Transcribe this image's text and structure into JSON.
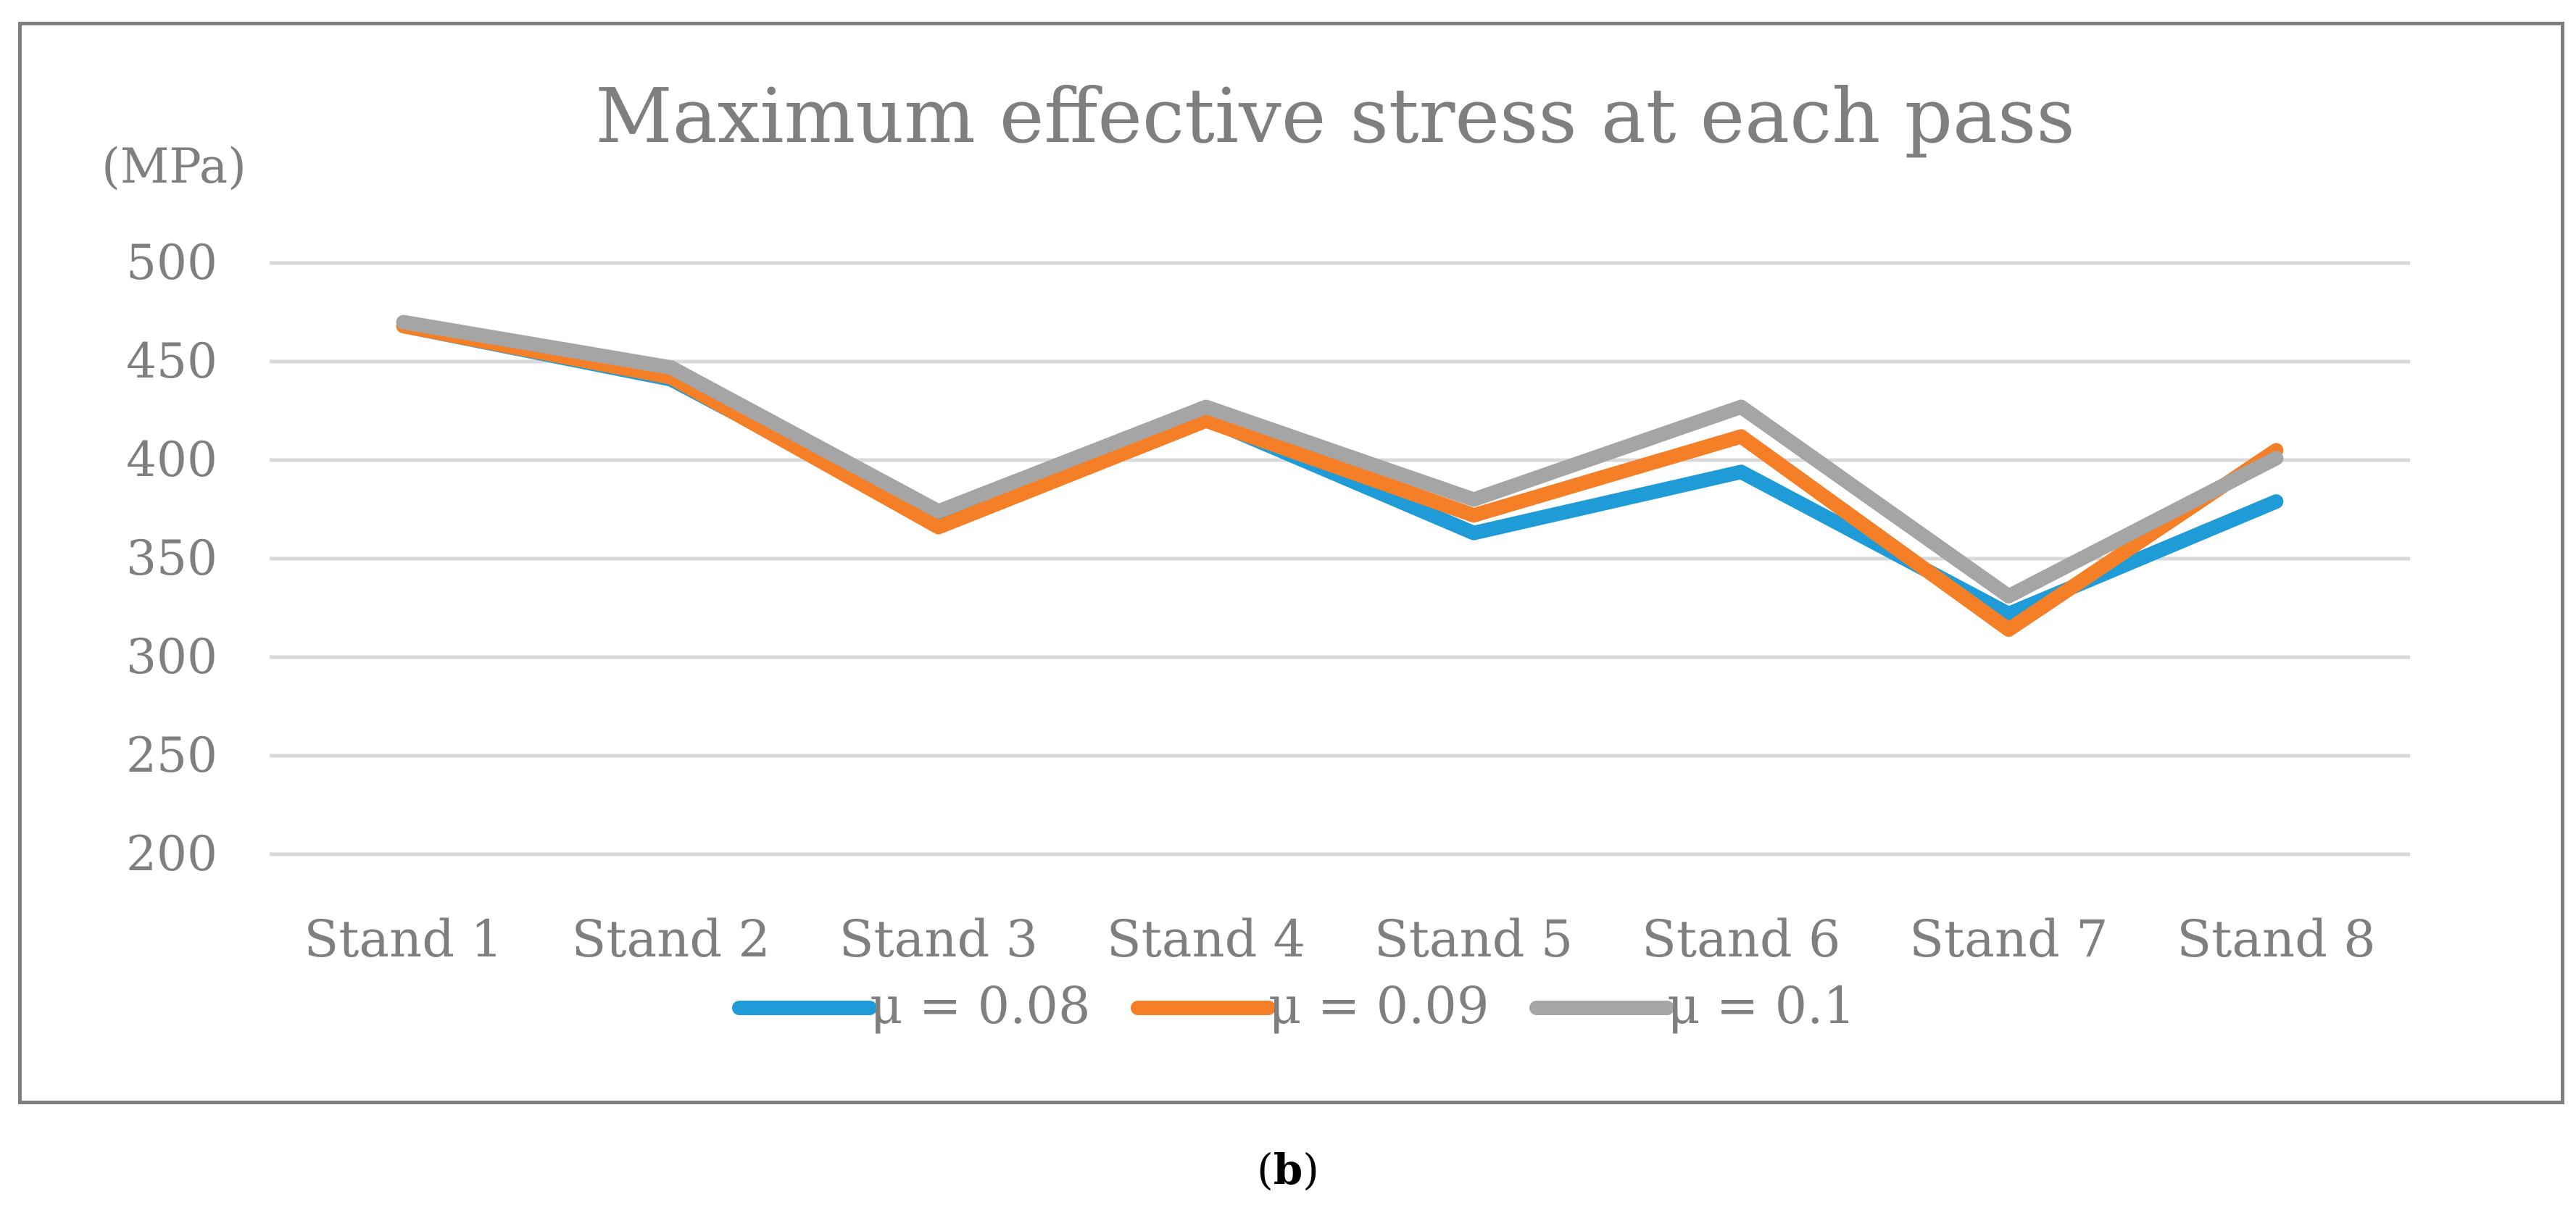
{
  "chart_data": {
    "type": "line",
    "title": "Maximum effective stress at each pass",
    "ylabel": "(MPa)",
    "xlabel": "",
    "categories": [
      "Stand 1",
      "Stand 2",
      "Stand 3",
      "Stand 4",
      "Stand 5",
      "Stand 6",
      "Stand 7",
      "Stand 8"
    ],
    "ylim": [
      200,
      500
    ],
    "yticks": [
      200,
      250,
      300,
      350,
      400,
      450,
      500
    ],
    "grid": true,
    "legend_position": "bottom",
    "series": [
      {
        "name": "μ = 0.08",
        "color": "#1f9bd7",
        "values": [
          468,
          441,
          369,
          421,
          363,
          394,
          322,
          379
        ]
      },
      {
        "name": "μ = 0.09",
        "color": "#f57f26",
        "values": [
          468,
          442,
          366,
          420,
          372,
          412,
          314,
          405
        ]
      },
      {
        "name": "μ = 0.1",
        "color": "#a5a5a5",
        "values": [
          470,
          447,
          374,
          427,
          380,
          427,
          331,
          401
        ]
      }
    ]
  },
  "caption": {
    "open": "(",
    "letter": "b",
    "close": ")"
  }
}
